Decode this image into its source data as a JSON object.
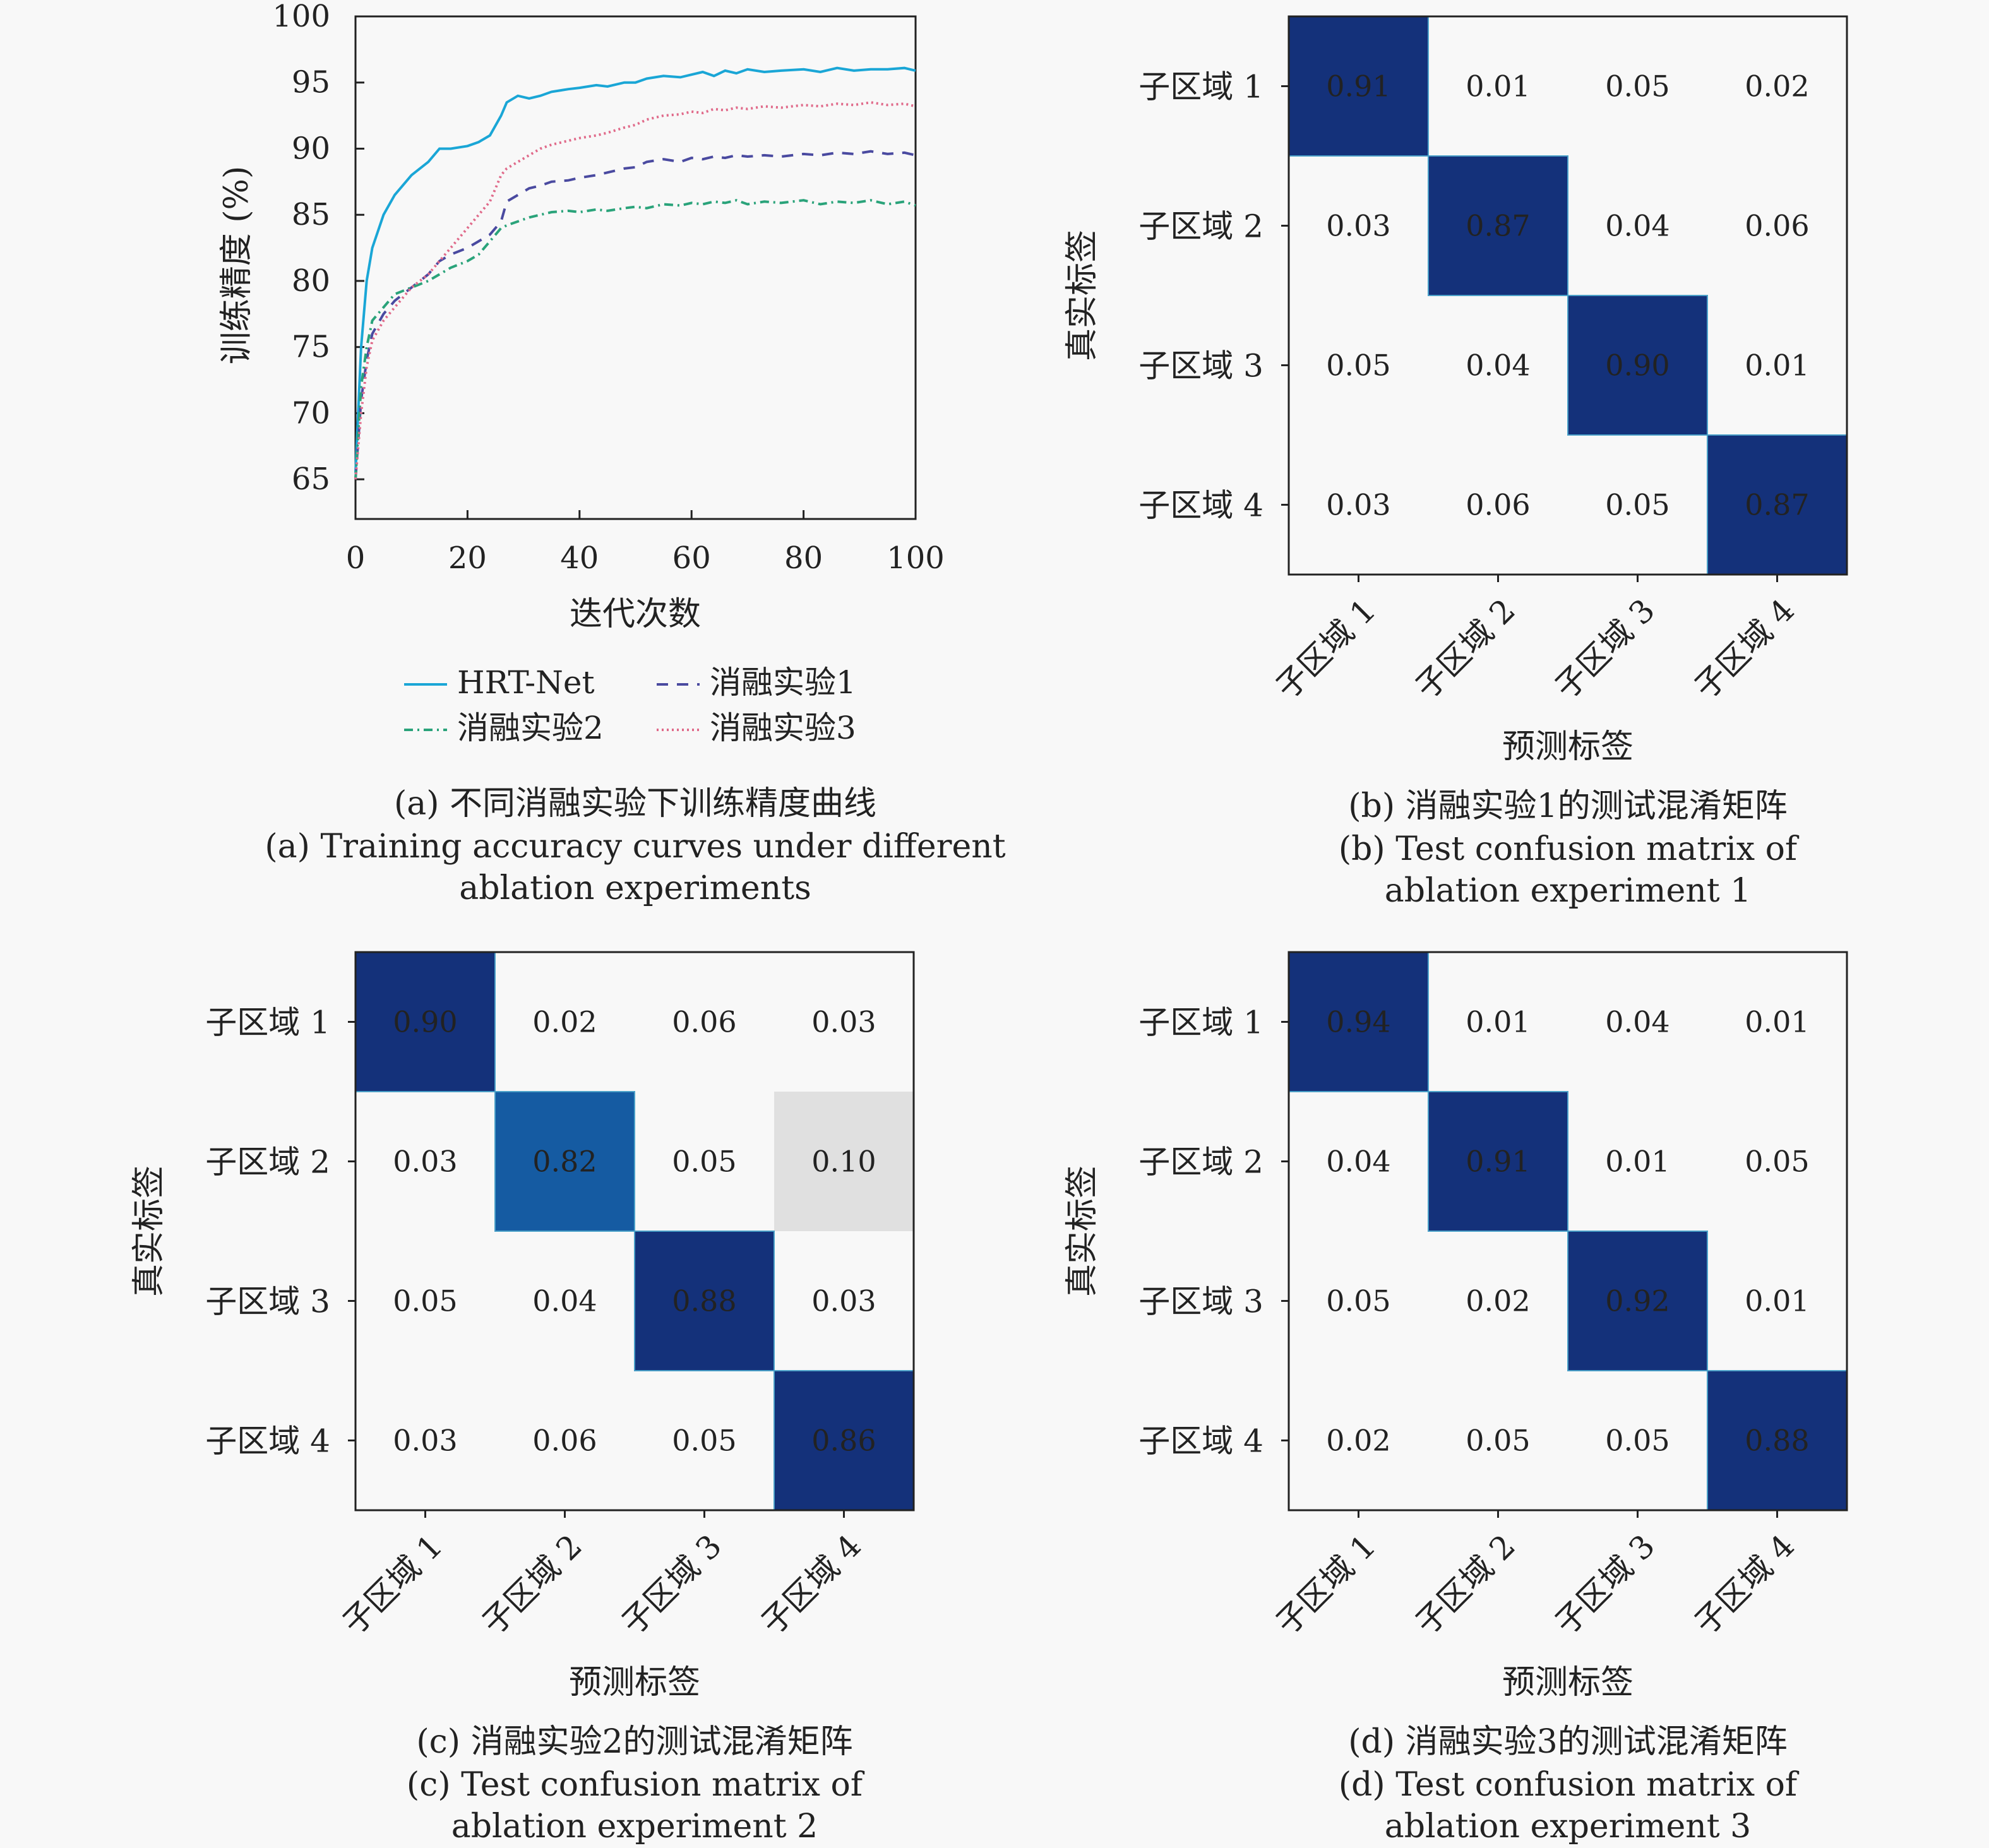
{
  "chart_data": [
    {
      "type": "line",
      "xlabel": "迭代次数",
      "ylabel": "训练精度 (%)",
      "xlim": [
        0,
        100
      ],
      "ylim": [
        62,
        100
      ],
      "xticks": [
        0,
        20,
        40,
        60,
        80,
        100
      ],
      "yticks": [
        65,
        70,
        75,
        80,
        85,
        90,
        95,
        100
      ],
      "legend": "bottom",
      "grid": false,
      "caption_cn": "(a) 不同消融实验下训练精度曲线",
      "caption_en": [
        "(a) Training accuracy curves under different",
        "ablation experiments"
      ],
      "series": [
        {
          "name": "HRT-Net",
          "color": "#1aa6d6",
          "dash": "solid",
          "x": [
            0,
            1,
            2,
            3,
            5,
            7,
            10,
            13,
            15,
            17,
            20,
            22,
            24,
            26,
            27,
            29,
            31,
            33,
            35,
            38,
            40,
            43,
            45,
            48,
            50,
            52,
            55,
            58,
            60,
            62,
            64,
            66,
            68,
            70,
            73,
            76,
            80,
            83,
            86,
            89,
            92,
            95,
            98,
            100
          ],
          "y": [
            65.5,
            75,
            80,
            82.5,
            85,
            86.5,
            88,
            89,
            90,
            90,
            90.2,
            90.5,
            91,
            92.5,
            93.5,
            94,
            93.8,
            94,
            94.3,
            94.5,
            94.6,
            94.8,
            94.7,
            95,
            95,
            95.3,
            95.5,
            95.4,
            95.6,
            95.8,
            95.5,
            95.9,
            95.7,
            96,
            95.8,
            95.9,
            96,
            95.8,
            96.1,
            95.9,
            96,
            96,
            96.1,
            95.9
          ]
        },
        {
          "name": "消融实验1",
          "color": "#4a4aa0",
          "dash": "dash",
          "x": [
            0,
            1,
            2,
            3,
            5,
            7,
            10,
            13,
            15,
            17,
            20,
            22,
            24,
            26,
            27,
            29,
            31,
            33,
            35,
            38,
            40,
            43,
            45,
            48,
            50,
            52,
            55,
            58,
            60,
            62,
            64,
            66,
            68,
            70,
            73,
            76,
            80,
            83,
            86,
            89,
            92,
            95,
            98,
            100
          ],
          "y": [
            65,
            71,
            74,
            76,
            77.5,
            78.5,
            79.5,
            80.5,
            81.5,
            82,
            82.5,
            83,
            83.5,
            84.5,
            86,
            86.5,
            87,
            87.2,
            87.5,
            87.6,
            87.8,
            88,
            88.2,
            88.5,
            88.6,
            89,
            89.2,
            89,
            89.3,
            89.2,
            89.4,
            89.3,
            89.5,
            89.4,
            89.5,
            89.4,
            89.6,
            89.5,
            89.7,
            89.6,
            89.8,
            89.6,
            89.7,
            89.5
          ]
        },
        {
          "name": "消融实验2",
          "color": "#2aa37a",
          "dash": "dashdot",
          "x": [
            0,
            1,
            2,
            3,
            5,
            7,
            10,
            13,
            15,
            17,
            20,
            22,
            24,
            26,
            27,
            29,
            31,
            33,
            35,
            38,
            40,
            43,
            45,
            48,
            50,
            52,
            55,
            58,
            60,
            62,
            64,
            66,
            68,
            70,
            73,
            76,
            80,
            83,
            86,
            89,
            92,
            95,
            98,
            100
          ],
          "y": [
            65,
            72,
            75,
            77,
            78,
            79,
            79.5,
            80,
            80.5,
            81,
            81.5,
            82,
            83,
            84,
            84.2,
            84.5,
            84.8,
            85,
            85.2,
            85.3,
            85.2,
            85.4,
            85.3,
            85.5,
            85.6,
            85.5,
            85.8,
            85.7,
            85.9,
            85.8,
            86,
            85.9,
            86.1,
            85.8,
            86,
            85.9,
            86.1,
            85.8,
            86,
            85.9,
            86.1,
            85.8,
            86,
            85.7
          ]
        },
        {
          "name": "消融实验3",
          "color": "#e06a8a",
          "dash": "dot",
          "x": [
            0,
            1,
            2,
            3,
            5,
            7,
            10,
            13,
            15,
            17,
            20,
            22,
            24,
            26,
            27,
            29,
            31,
            33,
            35,
            38,
            40,
            43,
            45,
            48,
            50,
            52,
            55,
            58,
            60,
            62,
            64,
            66,
            68,
            70,
            73,
            76,
            80,
            83,
            86,
            89,
            92,
            95,
            98,
            100
          ],
          "y": [
            65,
            70,
            73.5,
            75.5,
            77,
            78,
            79.5,
            80.5,
            81.5,
            82.5,
            84,
            85,
            86,
            88,
            88.5,
            89,
            89.5,
            90,
            90.3,
            90.6,
            90.8,
            91,
            91.2,
            91.6,
            91.8,
            92.2,
            92.5,
            92.6,
            92.8,
            92.7,
            93,
            92.9,
            93.1,
            93,
            93.2,
            93.1,
            93.3,
            93.2,
            93.4,
            93.3,
            93.5,
            93.3,
            93.4,
            93.2
          ]
        }
      ]
    },
    {
      "type": "heatmap",
      "ylabel": "真实标签",
      "xlabel": "预测标签",
      "row_labels": [
        "子区域 1",
        "子区域 2",
        "子区域 3",
        "子区域 4"
      ],
      "col_labels": [
        "子区域 1",
        "子区域 2",
        "子区域 3",
        "子区域 4"
      ],
      "values": [
        [
          0.91,
          0.01,
          0.05,
          0.02
        ],
        [
          0.03,
          0.87,
          0.04,
          0.06
        ],
        [
          0.05,
          0.04,
          0.9,
          0.01
        ],
        [
          0.03,
          0.06,
          0.05,
          0.87
        ]
      ],
      "cells": [
        [
          "0.91",
          "0.01",
          "0.05",
          "0.02"
        ],
        [
          "0.03",
          "0.87",
          "0.04",
          "0.06"
        ],
        [
          "0.05",
          "0.04",
          "0.90",
          "0.01"
        ],
        [
          "0.03",
          "0.06",
          "0.05",
          "0.87"
        ]
      ],
      "caption_cn": "(b) 消融实验1的测试混淆矩阵",
      "caption_en": [
        "(b) Test confusion matrix of",
        "ablation experiment 1"
      ]
    },
    {
      "type": "heatmap",
      "ylabel": "真实标签",
      "xlabel": "预测标签",
      "row_labels": [
        "子区域 1",
        "子区域 2",
        "子区域 3",
        "子区域 4"
      ],
      "col_labels": [
        "子区域 1",
        "子区域 2",
        "子区域 3",
        "子区域 4"
      ],
      "values": [
        [
          0.9,
          0.02,
          0.06,
          0.03
        ],
        [
          0.03,
          0.82,
          0.05,
          0.1
        ],
        [
          0.05,
          0.04,
          0.88,
          0.03
        ],
        [
          0.03,
          0.06,
          0.05,
          0.86
        ]
      ],
      "cells": [
        [
          "0.90",
          "0.02",
          "0.06",
          "0.03"
        ],
        [
          "0.03",
          "0.82",
          "0.05",
          "0.10"
        ],
        [
          "0.05",
          "0.04",
          "0.88",
          "0.03"
        ],
        [
          "0.03",
          "0.06",
          "0.05",
          "0.86"
        ]
      ],
      "caption_cn": "(c) 消融实验2的测试混淆矩阵",
      "caption_en": [
        "(c) Test confusion matrix of",
        "ablation experiment 2"
      ]
    },
    {
      "type": "heatmap",
      "ylabel": "真实标签",
      "xlabel": "预测标签",
      "row_labels": [
        "子区域 1",
        "子区域 2",
        "子区域 3",
        "子区域 4"
      ],
      "col_labels": [
        "子区域 1",
        "子区域 2",
        "子区域 3",
        "子区域 4"
      ],
      "values": [
        [
          0.94,
          0.01,
          0.04,
          0.01
        ],
        [
          0.04,
          0.91,
          0.01,
          0.05
        ],
        [
          0.05,
          0.02,
          0.92,
          0.01
        ],
        [
          0.02,
          0.05,
          0.05,
          0.88
        ]
      ],
      "cells": [
        [
          "0.94",
          "0.01",
          "0.04",
          "0.01"
        ],
        [
          "0.04",
          "0.91",
          "0.01",
          "0.05"
        ],
        [
          "0.05",
          "0.02",
          "0.92",
          "0.01"
        ],
        [
          "0.02",
          "0.05",
          "0.05",
          "0.88"
        ]
      ],
      "caption_cn": "(d) 消融实验3的测试混淆矩阵",
      "caption_en": [
        "(d) Test confusion matrix of",
        "ablation experiment 3"
      ]
    }
  ]
}
